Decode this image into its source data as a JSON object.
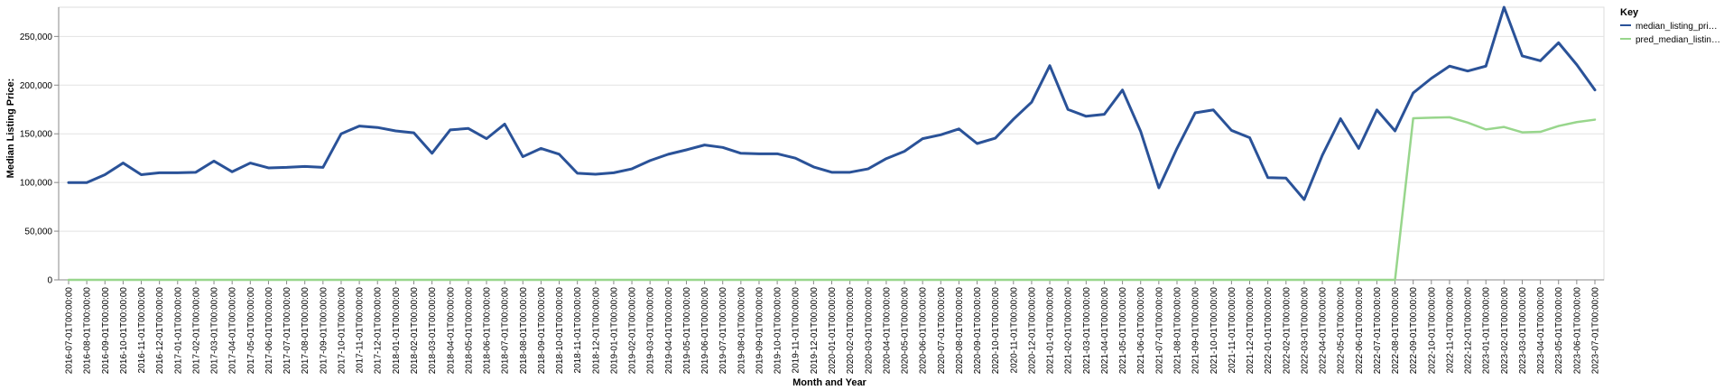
{
  "chart_data": {
    "type": "line",
    "xlabel": "Month and Year",
    "ylabel": "Median Listing Price:",
    "ylim": [
      0,
      280000
    ],
    "yticks": [
      "0",
      "50,000",
      "100,000",
      "150,000",
      "200,000",
      "250,000"
    ],
    "grid": "horizontal",
    "legend": {
      "title": "Key",
      "position": "top-right",
      "entries": [
        "median_listing_pri…",
        "pred_median_listin…"
      ]
    },
    "x": [
      "2016-07-01T00:00:00",
      "2016-08-01T00:00:00",
      "2016-09-01T00:00:00",
      "2016-10-01T00:00:00",
      "2016-11-01T00:00:00",
      "2016-12-01T00:00:00",
      "2017-01-01T00:00:00",
      "2017-02-01T00:00:00",
      "2017-03-01T00:00:00",
      "2017-04-01T00:00:00",
      "2017-05-01T00:00:00",
      "2017-06-01T00:00:00",
      "2017-07-01T00:00:00",
      "2017-08-01T00:00:00",
      "2017-09-01T00:00:00",
      "2017-10-01T00:00:00",
      "2017-11-01T00:00:00",
      "2017-12-01T00:00:00",
      "2018-01-01T00:00:00",
      "2018-02-01T00:00:00",
      "2018-03-01T00:00:00",
      "2018-04-01T00:00:00",
      "2018-05-01T00:00:00",
      "2018-06-01T00:00:00",
      "2018-07-01T00:00:00",
      "2018-08-01T00:00:00",
      "2018-09-01T00:00:00",
      "2018-10-01T00:00:00",
      "2018-11-01T00:00:00",
      "2018-12-01T00:00:00",
      "2019-01-01T00:00:00",
      "2019-02-01T00:00:00",
      "2019-03-01T00:00:00",
      "2019-04-01T00:00:00",
      "2019-05-01T00:00:00",
      "2019-06-01T00:00:00",
      "2019-07-01T00:00:00",
      "2019-08-01T00:00:00",
      "2019-09-01T00:00:00",
      "2019-10-01T00:00:00",
      "2019-11-01T00:00:00",
      "2019-12-01T00:00:00",
      "2020-01-01T00:00:00",
      "2020-02-01T00:00:00",
      "2020-03-01T00:00:00",
      "2020-04-01T00:00:00",
      "2020-05-01T00:00:00",
      "2020-06-01T00:00:00",
      "2020-07-01T00:00:00",
      "2020-08-01T00:00:00",
      "2020-09-01T00:00:00",
      "2020-10-01T00:00:00",
      "2020-11-01T00:00:00",
      "2020-12-01T00:00:00",
      "2021-01-01T00:00:00",
      "2021-02-01T00:00:00",
      "2021-03-01T00:00:00",
      "2021-04-01T00:00:00",
      "2021-05-01T00:00:00",
      "2021-06-01T00:00:00",
      "2021-07-01T00:00:00",
      "2021-08-01T00:00:00",
      "2021-09-01T00:00:00",
      "2021-10-01T00:00:00",
      "2021-11-01T00:00:00",
      "2021-12-01T00:00:00",
      "2022-01-01T00:00:00",
      "2022-02-01T00:00:00",
      "2022-03-01T00:00:00",
      "2022-04-01T00:00:00",
      "2022-05-01T00:00:00",
      "2022-06-01T00:00:00",
      "2022-07-01T00:00:00",
      "2022-08-01T00:00:00",
      "2022-09-01T00:00:00",
      "2022-10-01T00:00:00",
      "2022-11-01T00:00:00",
      "2022-12-01T00:00:00",
      "2023-01-01T00:00:00",
      "2023-02-01T00:00:00",
      "2023-03-01T00:00:00",
      "2023-04-01T00:00:00",
      "2023-05-01T00:00:00",
      "2023-06-01T00:00:00",
      "2023-07-01T00:00:00"
    ],
    "series": [
      {
        "name": "median_listing_pri…",
        "color": "#2a5298",
        "values": [
          99900,
          99900,
          108000,
          120000,
          108000,
          110000,
          110000,
          110500,
          122000,
          111000,
          120000,
          115000,
          115500,
          116500,
          115500,
          150000,
          158000,
          156500,
          153000,
          151000,
          130000,
          154000,
          155500,
          145000,
          160000,
          126500,
          135000,
          129000,
          109500,
          108500,
          110000,
          114000,
          122500,
          129000,
          133500,
          138500,
          136000,
          130000,
          129500,
          129500,
          125000,
          116000,
          110500,
          110500,
          114000,
          124500,
          132000,
          145000,
          149000,
          155000,
          140000,
          145500,
          165000,
          182500,
          220000,
          175000,
          168000,
          170000,
          195000,
          152500,
          94500,
          135000,
          171500,
          174500,
          153500,
          146000,
          105000,
          104500,
          82500,
          128000,
          165500,
          135000,
          174500,
          153000,
          192000,
          207000,
          219500,
          214500,
          219500,
          280000,
          230000,
          225000,
          243500,
          221000,
          195000
        ]
      },
      {
        "name": "pred_median_listin…",
        "color": "#98d68c",
        "values": [
          0,
          0,
          0,
          0,
          0,
          0,
          0,
          0,
          0,
          0,
          0,
          0,
          0,
          0,
          0,
          0,
          0,
          0,
          0,
          0,
          0,
          0,
          0,
          0,
          0,
          0,
          0,
          0,
          0,
          0,
          0,
          0,
          0,
          0,
          0,
          0,
          0,
          0,
          0,
          0,
          0,
          0,
          0,
          0,
          0,
          0,
          0,
          0,
          0,
          0,
          0,
          0,
          0,
          0,
          0,
          0,
          0,
          0,
          0,
          0,
          0,
          0,
          0,
          0,
          0,
          0,
          0,
          0,
          0,
          0,
          0,
          0,
          0,
          0,
          166000,
          166500,
          167000,
          161500,
          154500,
          157000,
          151500,
          152000,
          158000,
          162000,
          164500
        ]
      }
    ]
  }
}
